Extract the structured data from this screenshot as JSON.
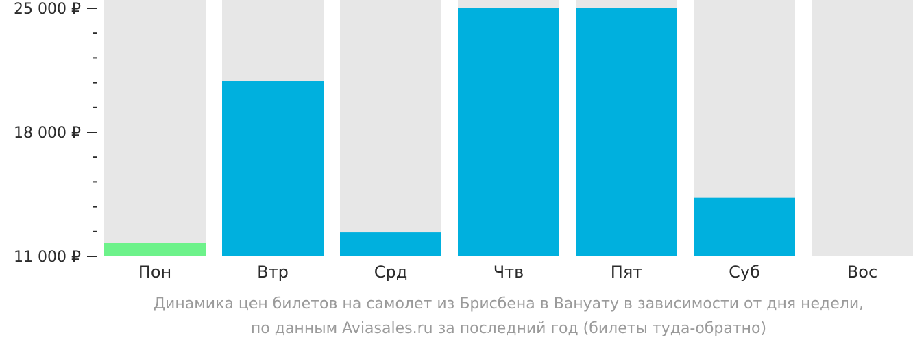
{
  "chart_data": {
    "type": "bar",
    "categories": [
      "Пон",
      "Втр",
      "Срд",
      "Чтв",
      "Пят",
      "Суб",
      "Вос"
    ],
    "values": [
      11750,
      20900,
      12350,
      25000,
      25000,
      14300,
      null
    ],
    "highlight_index": 0,
    "colors": {
      "bar": "#00b0de",
      "highlight": "#6df28a",
      "track": "#e7e7e7",
      "axis": "#2b2b2b"
    },
    "ylim": [
      11000,
      25000
    ],
    "yticks": [
      {
        "value": 25000,
        "label": "25 000 ₽"
      },
      {
        "value": 18000,
        "label": "18 000 ₽"
      },
      {
        "value": 11000,
        "label": "11 000 ₽"
      }
    ],
    "minor_tick_step": 1400,
    "title": "",
    "xlabel": "",
    "ylabel": "",
    "caption_line1": "Динамика цен билетов на самолет из Брисбена в Вануату в зависимости от дня недели,",
    "caption_line2": "по данным Aviasales.ru за последний год (билеты туда-обратно)"
  }
}
